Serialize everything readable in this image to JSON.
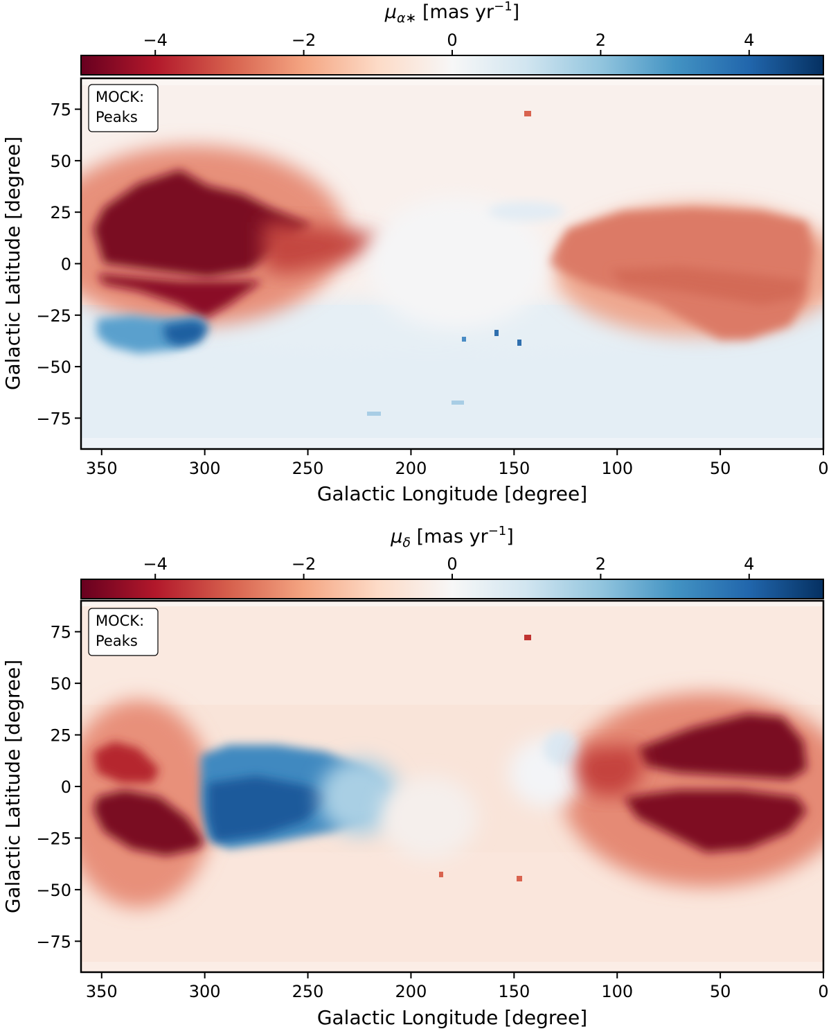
{
  "chart_data": [
    {
      "type": "heatmap",
      "projection": "galactic sky map",
      "quantity": "pmra",
      "colorbar": {
        "title_symbol": "μ",
        "title_subscript": "α∗",
        "title_units_main": " [mas yr",
        "title_units_exp": "−1",
        "title_units_end": "]",
        "range": [
          -5,
          5
        ],
        "ticks": [
          -4,
          -2,
          0,
          2,
          4
        ],
        "tick_labels": [
          "−4",
          "−2",
          "0",
          "2",
          "4"
        ],
        "colormap": "RdBu"
      },
      "xlabel": "Galactic Longitude [degree]",
      "ylabel": "Galactic Latitude [degree]",
      "xlim": [
        360,
        0
      ],
      "ylim": [
        -90,
        90
      ],
      "xticks": [
        350,
        300,
        250,
        200,
        150,
        100,
        50,
        0
      ],
      "xtick_labels": [
        "350",
        "300",
        "250",
        "200",
        "150",
        "100",
        "50",
        "0"
      ],
      "yticks": [
        75,
        50,
        25,
        0,
        -25,
        -50,
        -75
      ],
      "ytick_labels": [
        "75",
        "50",
        "25",
        "0",
        "−25",
        "−50",
        "−75"
      ],
      "legend": {
        "line1": "MOCK:",
        "line2": "Peaks",
        "location": "top-left"
      },
      "features": [
        {
          "l": 330,
          "b": 10,
          "value": -5.0,
          "description": "dark red lobe"
        },
        {
          "l": 330,
          "b": -10,
          "value": -4.5,
          "description": "dark red lower lobe"
        },
        {
          "l": 50,
          "b": -5,
          "value": -2.0,
          "description": "medium red lobe"
        },
        {
          "l": 300,
          "b": -35,
          "value": 3.0,
          "description": "blue patch"
        },
        {
          "l": 180,
          "b": 0,
          "value": 0.0,
          "description": "near zero centre"
        },
        {
          "l": 180,
          "b": -55,
          "value": 0.3,
          "description": "light blue south"
        }
      ]
    },
    {
      "type": "heatmap",
      "projection": "galactic sky map",
      "quantity": "pmdec",
      "colorbar": {
        "title_symbol": "μ",
        "title_subscript": "δ",
        "title_units_main": " [mas yr",
        "title_units_exp": "−1",
        "title_units_end": "]",
        "range": [
          -5,
          5
        ],
        "ticks": [
          -4,
          -2,
          0,
          2,
          4
        ],
        "tick_labels": [
          "−4",
          "−2",
          "0",
          "2",
          "4"
        ],
        "colormap": "RdBu"
      },
      "xlabel": "Galactic Longitude [degree]",
      "ylabel": "Galactic Latitude [degree]",
      "xlim": [
        360,
        0
      ],
      "ylim": [
        -90,
        90
      ],
      "xticks": [
        350,
        300,
        250,
        200,
        150,
        100,
        50,
        0
      ],
      "xtick_labels": [
        "350",
        "300",
        "250",
        "200",
        "150",
        "100",
        "50",
        "0"
      ],
      "yticks": [
        75,
        50,
        25,
        0,
        -25,
        -50,
        -75
      ],
      "ytick_labels": [
        "75",
        "50",
        "25",
        "0",
        "−25",
        "−50",
        "−75"
      ],
      "legend": {
        "line1": "MOCK:",
        "line2": "Peaks",
        "location": "top-left"
      },
      "features": [
        {
          "l": 330,
          "b": -15,
          "value": -5.0,
          "description": "dark red left lobe"
        },
        {
          "l": 40,
          "b": 10,
          "value": -5.0,
          "description": "dark red right lobe"
        },
        {
          "l": 260,
          "b": -5,
          "value": 3.5,
          "description": "blue lobe"
        },
        {
          "l": 180,
          "b": 0,
          "value": 0.0,
          "description": "near zero centre"
        },
        {
          "l": 180,
          "b": 60,
          "value": -0.5,
          "description": "pale red north"
        }
      ]
    }
  ]
}
